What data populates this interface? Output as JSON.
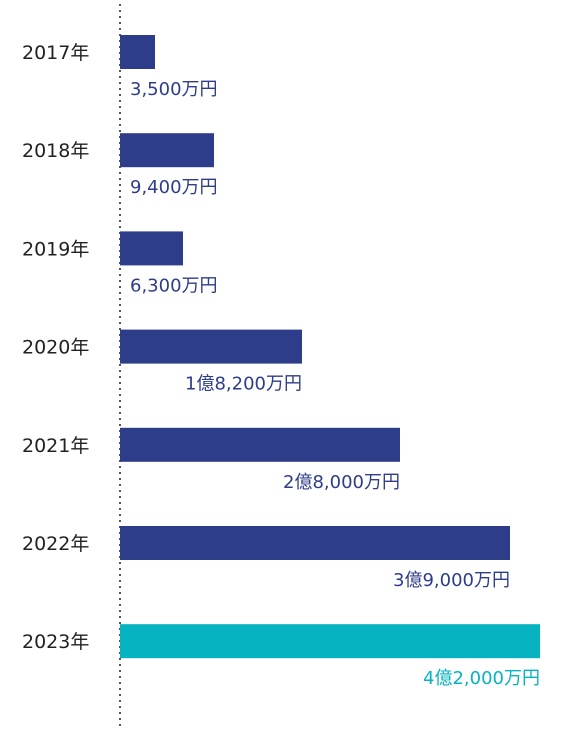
{
  "chart_data": {
    "type": "bar",
    "orientation": "horizontal",
    "title": "",
    "xlabel": "",
    "ylabel": "",
    "unit": "万円",
    "categories": [
      "2017年",
      "2018年",
      "2019年",
      "2020年",
      "2021年",
      "2022年",
      "2023年"
    ],
    "values": [
      3500,
      9400,
      6300,
      18200,
      28000,
      39000,
      42000
    ],
    "value_labels": [
      "3,500万円",
      "9,400万円",
      "6,300万円",
      "1億8,200万円",
      "2億8,000万円",
      "3億9,000万円",
      "4億2,000万円"
    ],
    "xlim": [
      0,
      42000
    ],
    "grid": false,
    "baseline_style": "dotted",
    "colors": {
      "bar": "#2e3d8a",
      "highlight_bar": "#05b3c1",
      "label": "#2e3d8a",
      "highlight_label": "#05b3c1",
      "category_text": "#222222",
      "baseline": "#555555"
    },
    "highlight_category": "2023年"
  }
}
